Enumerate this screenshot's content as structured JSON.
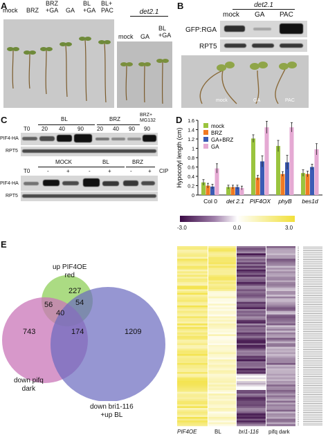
{
  "panel_labels": {
    "A": "A",
    "B": "B",
    "C": "C",
    "D": "D",
    "E": "E"
  },
  "panelA": {
    "labels": [
      "mock",
      "BRZ",
      "BRZ\n+GA",
      "GA",
      "BL\n+GA",
      "BL+\nPAC"
    ],
    "det_title": "det2.1",
    "det_labels": [
      "mock",
      "GA",
      "BL\n+GA"
    ]
  },
  "panelB": {
    "title": "det2.1",
    "lanes": [
      "mock",
      "GA",
      "PAC"
    ],
    "rows": [
      "GFP:RGA",
      "RPT5"
    ],
    "photo_labels": [
      "mock",
      "GA",
      "PAC"
    ]
  },
  "panelC": {
    "top_groups": [
      "BL",
      "BRZ",
      "BRZ+\nMG132"
    ],
    "top_lanes": [
      "T0",
      "20",
      "40",
      "90",
      "20",
      "40",
      "90",
      "90"
    ],
    "top_rows": [
      "PIF4-HA",
      "RPT5"
    ],
    "bottom_groups": [
      "MOCK",
      "BL",
      "BRZ"
    ],
    "bottom_lanes": [
      "T0",
      "-",
      "+",
      "-",
      "+",
      "-",
      "+"
    ],
    "bottom_cip": "CIP",
    "bottom_rows": [
      "PIF4-HA",
      "RPT5"
    ]
  },
  "chart_data": [
    {
      "type": "bar",
      "ylabel": "Hypocotyl length (cm)",
      "ylim": [
        0,
        1.6
      ],
      "yticks": [
        "0",
        "0.2",
        "0.4",
        "0.6",
        "0.8",
        "1",
        "1.2",
        "1.4",
        "1.6"
      ],
      "categories": [
        "Col 0",
        "det 2.1",
        "PIF4OX",
        "phyB",
        "bes1d"
      ],
      "series": [
        {
          "name": "mock",
          "color": "#9ac43e",
          "values": [
            0.27,
            0.17,
            1.21,
            1.05,
            0.47
          ],
          "err": [
            0.06,
            0.04,
            0.08,
            0.12,
            0.07
          ]
        },
        {
          "name": "BRZ",
          "color": "#f07a22",
          "values": [
            0.2,
            0.17,
            0.37,
            0.45,
            0.45
          ],
          "err": [
            0.05,
            0.04,
            0.05,
            0.05,
            0.06
          ]
        },
        {
          "name": "GA+BRZ",
          "color": "#3b5bb5",
          "values": [
            0.18,
            0.17,
            0.72,
            0.7,
            0.6
          ],
          "err": [
            0.05,
            0.04,
            0.12,
            0.15,
            0.06
          ]
        },
        {
          "name": "GA",
          "color": "#e5a9d3",
          "values": [
            0.57,
            0.15,
            1.45,
            1.45,
            0.98
          ],
          "err": [
            0.1,
            0.04,
            0.13,
            0.1,
            0.12
          ]
        }
      ]
    },
    {
      "type": "heatmap",
      "colorbar_ticks": [
        "-3.0",
        "0.0",
        "3.0"
      ],
      "colorbar_colors": [
        "#3a0a45",
        "#ffffff",
        "#f2e03a"
      ],
      "columns": [
        "PIF4OE",
        "BL",
        "bri1-116",
        "pifq dark"
      ]
    }
  ],
  "venn": {
    "circles": [
      {
        "label": "up PIF4OE\nred",
        "color": "#8fcf5a"
      },
      {
        "label": "down pifq\ndark",
        "color": "#c975b8"
      },
      {
        "label": "down bri1-116\n+up BL",
        "color": "#6a6abf"
      }
    ],
    "counts": {
      "a_only": "227",
      "b_only": "743",
      "c_only": "1209",
      "ab": "56",
      "ac": "54",
      "bc": "174",
      "abc": "40"
    }
  }
}
